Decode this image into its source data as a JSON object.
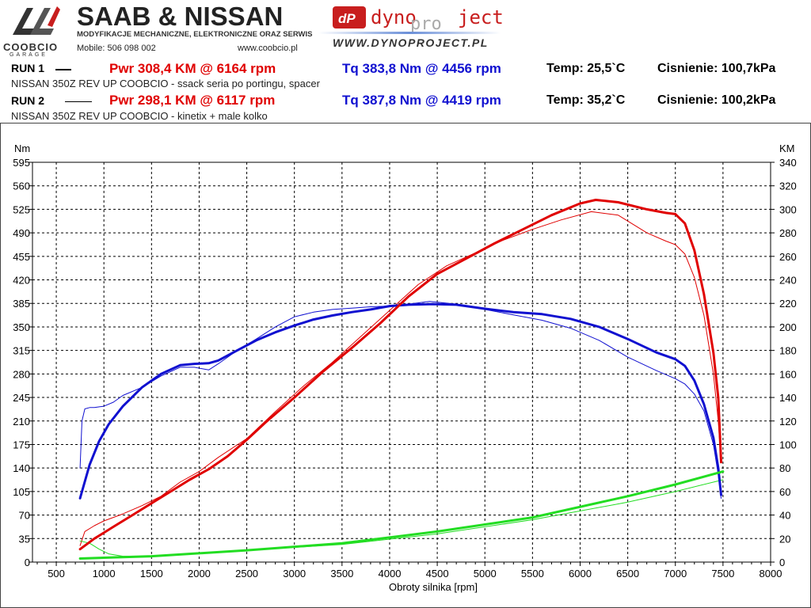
{
  "header": {
    "logo_text": "COOBCIO",
    "logo_sub": "GARAGE",
    "brand_title": "SAAB & NISSAN",
    "brand_subtitle": "MODYFIKACJE MECHANICZNE, ELEKTRONICZNE ORAZ SERWIS",
    "mobile": "Mobile: 506 098 002",
    "website": "www.coobcio.pl",
    "dyno_logo_part1": "dyno",
    "dyno_logo_part2": "pro",
    "dyno_logo_part3": "ject",
    "dyno_url": "WWW.DYNOPROJECT.PL"
  },
  "runs": [
    {
      "label": "RUN 1",
      "pwr": "Pwr  308,4 KM @ 6164 rpm",
      "tq": "Tq 383,8 Nm @ 4456 rpm",
      "temp": "Temp: 25,5`C",
      "pressure": "Cisnienie: 100,7kPa",
      "description": "NISSAN 350Z REV UP COOBCIO - ssack seria po portingu, spacer"
    },
    {
      "label": "RUN 2",
      "pwr": "Pwr  298,1 KM @ 6117 rpm",
      "tq": "Tq 387,8 Nm @ 4419 rpm",
      "temp": "Temp: 35,2`C",
      "pressure": "Cisnienie: 100,2kPa",
      "description": "NISSAN 350Z REV UP COOBCIO - kinetix + male kolko"
    }
  ],
  "colors": {
    "power": "#e00000",
    "torque": "#1010d0",
    "loss": "#22dd22",
    "grid": "#000000"
  },
  "chart_data": {
    "type": "line",
    "xlabel": "Obroty silnika [rpm]",
    "ylabel_left": "Nm",
    "ylabel_right": "KM",
    "xlim": [
      250,
      8000
    ],
    "ylim_left": [
      0,
      595
    ],
    "ylim_right": [
      0,
      340
    ],
    "x_ticks": [
      "500",
      "1000",
      "1500",
      "2000",
      "2500",
      "3000",
      "3500",
      "4000",
      "4500",
      "5000",
      "5500",
      "6000",
      "6500",
      "7000",
      "7500",
      "8000"
    ],
    "y_left_ticks": [
      "0",
      "35",
      "70",
      "105",
      "140",
      "175",
      "210",
      "245",
      "280",
      "315",
      "350",
      "385",
      "420",
      "455",
      "490",
      "525",
      "560",
      "595"
    ],
    "y_right_ticks": [
      "0",
      "20",
      "40",
      "60",
      "80",
      "100",
      "120",
      "140",
      "160",
      "180",
      "200",
      "220",
      "240",
      "260",
      "280",
      "300",
      "320",
      "340"
    ],
    "grid": true,
    "series": [
      {
        "name": "RUN 1",
        "quantity": "torque",
        "axis": "left",
        "width": "thick",
        "x": [
          750,
          850,
          950,
          1050,
          1200,
          1400,
          1600,
          1800,
          1950,
          2100,
          2200,
          2400,
          2600,
          2800,
          3000,
          3200,
          3400,
          3600,
          3800,
          4000,
          4200,
          4456,
          4700,
          5000,
          5300,
          5600,
          5900,
          6200,
          6500,
          6800,
          7000,
          7100,
          7200,
          7300,
          7400,
          7450,
          7480
        ],
        "y": [
          95,
          145,
          180,
          205,
          232,
          260,
          280,
          293,
          295,
          296,
          300,
          315,
          330,
          342,
          352,
          361,
          367,
          372,
          376,
          381,
          383,
          384,
          383,
          377,
          372,
          369,
          362,
          350,
          332,
          312,
          302,
          292,
          270,
          235,
          185,
          140,
          100
        ]
      },
      {
        "name": "RUN 2",
        "quantity": "torque",
        "axis": "left",
        "width": "thin",
        "x": [
          750,
          770,
          800,
          850,
          900,
          1000,
          1100,
          1200,
          1400,
          1600,
          1800,
          1950,
          2100,
          2200,
          2400,
          2600,
          2800,
          3000,
          3200,
          3400,
          3600,
          3800,
          4000,
          4200,
          4419,
          4700,
          5000,
          5300,
          5600,
          5900,
          6200,
          6500,
          6800,
          7000,
          7100,
          7200,
          7300,
          7400,
          7450,
          7480
        ],
        "y": [
          140,
          210,
          228,
          230,
          230,
          232,
          238,
          248,
          260,
          277,
          290,
          290,
          286,
          295,
          315,
          332,
          350,
          365,
          372,
          376,
          378,
          380,
          381,
          384,
          388,
          384,
          376,
          368,
          360,
          348,
          330,
          305,
          285,
          273,
          265,
          250,
          225,
          175,
          130,
          95
        ]
      },
      {
        "name": "RUN 1",
        "quantity": "power",
        "axis": "right",
        "width": "thick",
        "x": [
          750,
          900,
          1100,
          1300,
          1500,
          1700,
          1900,
          2100,
          2300,
          2500,
          2700,
          3000,
          3300,
          3600,
          3900,
          4200,
          4500,
          4800,
          5100,
          5400,
          5700,
          6000,
          6164,
          6400,
          6700,
          6900,
          7000,
          7100,
          7200,
          7300,
          7400,
          7450,
          7480
        ],
        "y": [
          11,
          20,
          30,
          40,
          50,
          60,
          70,
          79,
          90,
          104,
          119,
          140,
          162,
          182,
          203,
          226,
          245,
          258,
          271,
          283,
          295,
          305,
          308,
          306,
          300,
          297,
          296,
          288,
          265,
          228,
          178,
          140,
          85
        ]
      },
      {
        "name": "RUN 2",
        "quantity": "power",
        "axis": "right",
        "width": "thin",
        "x": [
          750,
          800,
          900,
          1000,
          1200,
          1400,
          1600,
          1800,
          2000,
          2200,
          2500,
          2800,
          3100,
          3400,
          3700,
          4000,
          4300,
          4600,
          4900,
          5200,
          5500,
          5800,
          6117,
          6400,
          6700,
          6900,
          7000,
          7100,
          7200,
          7300,
          7400,
          7450,
          7480
        ],
        "y": [
          14,
          26,
          31,
          35,
          41,
          48,
          56,
          68,
          77,
          89,
          105,
          128,
          150,
          170,
          192,
          214,
          236,
          252,
          263,
          274,
          283,
          291,
          298,
          295,
          280,
          273,
          270,
          262,
          242,
          210,
          160,
          120,
          85
        ]
      },
      {
        "name": "RUN 1",
        "quantity": "loss",
        "axis": "right",
        "width": "thick",
        "x": [
          750,
          1500,
          2500,
          3500,
          4500,
          5500,
          6500,
          7000,
          7500
        ],
        "y": [
          3,
          5,
          10,
          16,
          26,
          38,
          56,
          66,
          77
        ]
      },
      {
        "name": "RUN 2",
        "quantity": "loss",
        "axis": "right",
        "width": "thin",
        "x": [
          750,
          850,
          950,
          1050,
          1200,
          1500,
          2500,
          3500,
          4500,
          5500,
          6500,
          7000,
          7500
        ],
        "y": [
          18,
          16,
          11,
          7,
          5,
          5,
          10,
          15,
          24,
          36,
          51,
          60,
          70
        ]
      }
    ]
  }
}
